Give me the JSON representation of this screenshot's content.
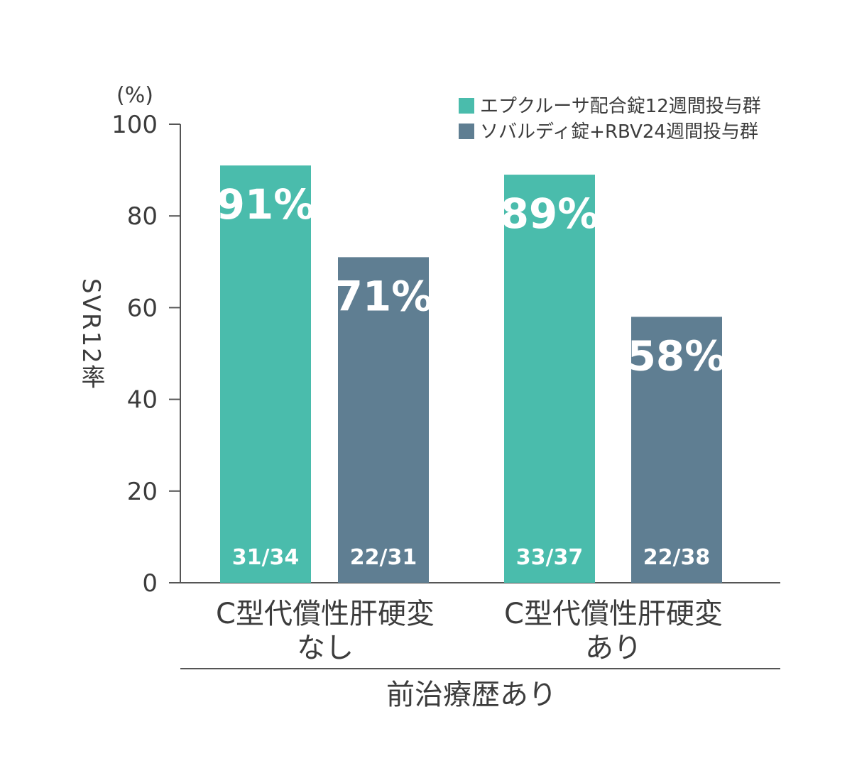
{
  "chart_data": {
    "type": "bar",
    "ylabel": "SVR12率",
    "unit_label": "(%)",
    "ylim": [
      0,
      100
    ],
    "yticks": [
      "0",
      "20",
      "40",
      "60",
      "80",
      "100"
    ],
    "categories": [
      [
        "C型代償性肝硬変",
        "なし"
      ],
      [
        "C型代償性肝硬変",
        "あり"
      ]
    ],
    "group_label": "前治療歴あり",
    "legend_placement": "top-right",
    "grid": false,
    "series": [
      {
        "name": "エプクルーサ配合錠12週間投与群",
        "color": "#4abcac",
        "values": [
          91,
          89
        ],
        "value_labels": [
          "91%",
          "89%"
        ],
        "fractions": [
          "31/34",
          "33/37"
        ]
      },
      {
        "name": "ソバルディ錠+RBV24週間投与群",
        "color": "#5f7e92",
        "values": [
          71,
          58
        ],
        "value_labels": [
          "71%",
          "58%"
        ],
        "fractions": [
          "22/31",
          "22/38"
        ]
      }
    ]
  }
}
